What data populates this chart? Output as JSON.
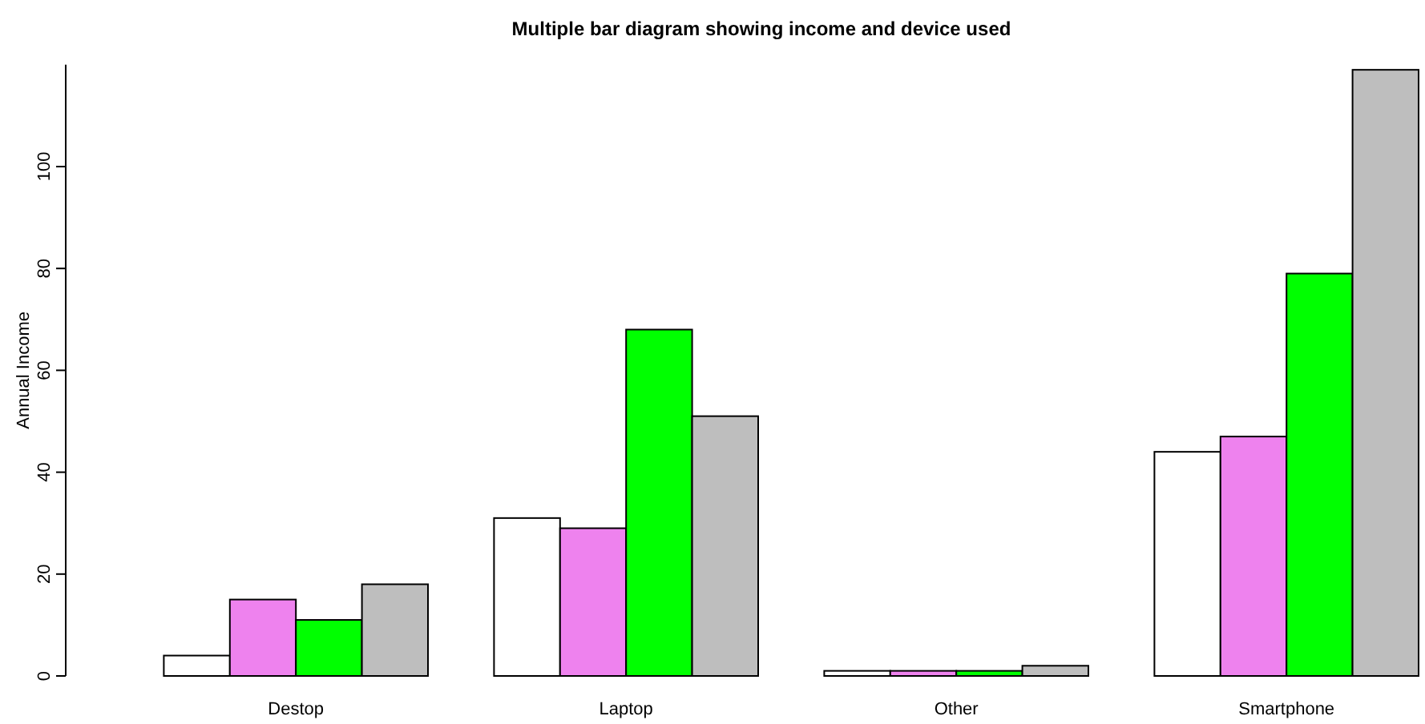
{
  "chart_data": {
    "type": "bar",
    "title": "Multiple bar diagram showing income and device used",
    "ylabel": "Annual Income",
    "categories": [
      "Destop",
      "Laptop",
      "Other",
      "Smartphone"
    ],
    "series": [
      {
        "color": "#ffffff",
        "values": [
          4,
          31,
          1,
          44
        ]
      },
      {
        "color": "#ee82ee",
        "values": [
          15,
          29,
          1,
          47
        ]
      },
      {
        "color": "#00ff00",
        "values": [
          11,
          68,
          1,
          79
        ]
      },
      {
        "color": "#bebebe",
        "values": [
          18,
          51,
          2,
          119
        ]
      }
    ],
    "ylim": [
      0,
      120
    ],
    "yticks": [
      0,
      20,
      40,
      60,
      80,
      100
    ],
    "grid": false
  }
}
